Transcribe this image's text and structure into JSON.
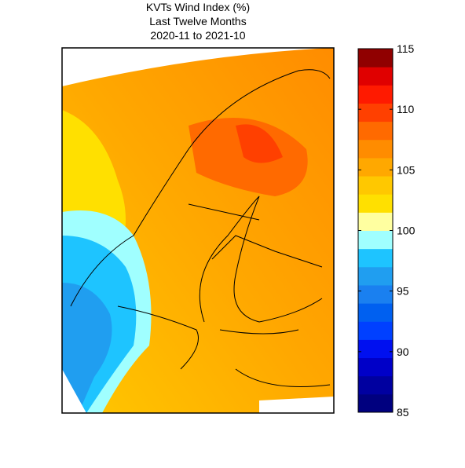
{
  "map": {
    "title": [
      "KVTs Wind Index (%)",
      "Last Twelve Months",
      "2020-11 to 2021-10"
    ]
  },
  "colorbar": {
    "lim": [
      85,
      115
    ],
    "ticks": [
      85,
      90,
      95,
      100,
      105,
      110,
      115
    ],
    "colors": [
      "#00007f",
      "#0000a0",
      "#0000c8",
      "#0010f0",
      "#0040ff",
      "#0060f0",
      "#1a80f0",
      "#209ef0",
      "#1ec4ff",
      "#a0ffff",
      "#ffffa0",
      "#ffe000",
      "#ffc800",
      "#ffa800",
      "#ff8c00",
      "#ff6a00",
      "#ff4000",
      "#ff1a00",
      "#e00000",
      "#900000"
    ]
  }
}
